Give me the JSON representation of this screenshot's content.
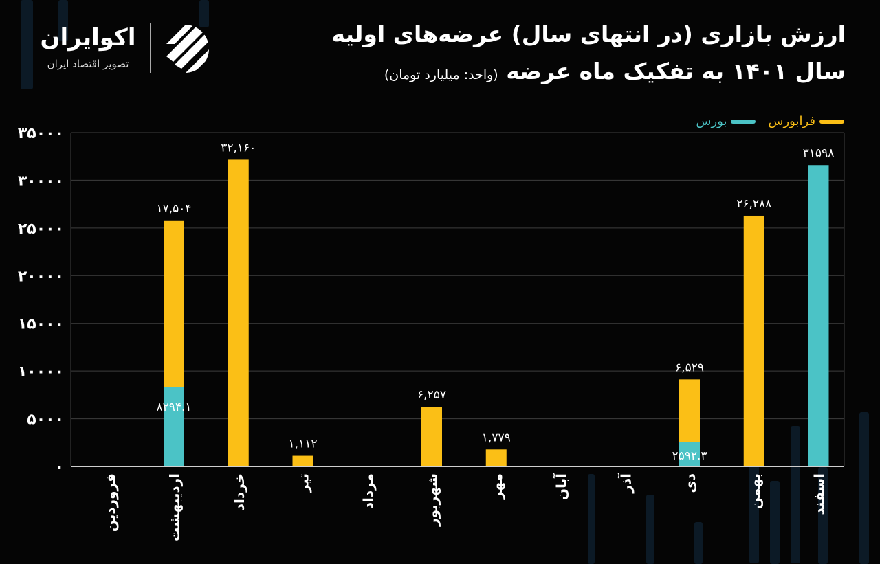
{
  "header": {
    "title_line1": "ارزش بازاری (در انتهای سال) عرضه‌های اولیه",
    "title_line2": "سال ۱۴۰۱ به تفکیک ماه عرضه",
    "unit": "(واحد: میلیارد تومان)"
  },
  "logo": {
    "name": "اکوایران",
    "tagline": "تصویر اقتصاد ایران"
  },
  "colors": {
    "farabourse": "#FBBF16",
    "bourse": "#4BC3C6",
    "background": "#050505",
    "grid": "#444444"
  },
  "chart_data": {
    "type": "bar",
    "stacked": true,
    "title": "ارزش بازاری (در انتهای سال) عرضه‌های اولیه سال ۱۴۰۱ به تفکیک ماه عرضه",
    "xlabel": "",
    "ylabel": "",
    "ylim": [
      0,
      35000
    ],
    "grid": true,
    "legend_position": "top-right",
    "yticks": [
      0,
      5000,
      10000,
      15000,
      20000,
      25000,
      30000,
      35000
    ],
    "ytick_labels": [
      "۰",
      "۵۰۰۰",
      "۱۰۰۰۰",
      "۱۵۰۰۰",
      "۲۰۰۰۰",
      "۲۵۰۰۰",
      "۳۰۰۰۰",
      "۳۵۰۰۰"
    ],
    "categories": [
      "فروردین",
      "اردیبهشت",
      "خرداد",
      "تیر",
      "مرداد",
      "شهریور",
      "مهر",
      "آبان",
      "آذر",
      "دی",
      "بهمن",
      "اسفند"
    ],
    "series": [
      {
        "name": "بورس",
        "color": "#4BC3C6",
        "values": [
          0,
          8294.1,
          0,
          0,
          0,
          0,
          0,
          0,
          0,
          2592.3,
          0,
          31598
        ],
        "labels": [
          "",
          "۸۲۹۴.۱",
          "",
          "",
          "",
          "",
          "",
          "",
          "",
          "۲۵۹۲.۳",
          "",
          "۳۱۵۹۸"
        ]
      },
      {
        "name": "فرابورس",
        "color": "#FBBF16",
        "values": [
          0,
          17504,
          32160,
          1112,
          0,
          6257,
          1779,
          0,
          0,
          6529,
          26288,
          0
        ],
        "labels": [
          "",
          "۱۷,۵۰۴",
          "۳۲,۱۶۰",
          "۱,۱۱۲",
          "",
          "۶,۲۵۷",
          "۱,۷۷۹",
          "",
          "",
          "۶,۵۲۹",
          "۲۶,۲۸۸",
          ""
        ]
      }
    ]
  }
}
